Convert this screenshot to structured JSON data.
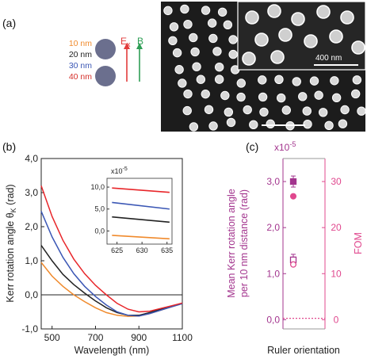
{
  "panels": {
    "a": "(a)",
    "b": "(b)",
    "c": "(c)"
  },
  "panel_a": {
    "legend": [
      {
        "label": "10 nm",
        "color": "#f08a2c"
      },
      {
        "label": "20 nm",
        "color": "#222222"
      },
      {
        "label": "30 nm",
        "color": "#3b57b5"
      },
      {
        "label": "40 nm",
        "color": "#d5302b"
      }
    ],
    "disk_color": "#6b6f8e",
    "e_label": "E",
    "e_sub": "x",
    "e_color": "#e23c3c",
    "b_label": "B",
    "b_color": "#2e9e55",
    "scale_label": "400 nm"
  },
  "chart_data": [
    {
      "type": "line",
      "panel": "b",
      "xlabel": "Wavelength (nm)",
      "ylabel": "Kerr rotation angle θ",
      "ylabel_sub": "K",
      "ylabel_unit": "(rad)",
      "ylim": [
        -1.0,
        4.0
      ],
      "xlim": [
        450,
        1100
      ],
      "y_exponent": "x10",
      "y_exponent_power": "-5",
      "x_ticks": [
        "500",
        "700",
        "900",
        "1100"
      ],
      "x_tick_values": [
        500,
        700,
        900,
        1100
      ],
      "y_ticks": [
        "-1,0",
        "0,0",
        "1,0",
        "2,0",
        "3,0",
        "4,0"
      ],
      "y_tick_values": [
        -1,
        0,
        1,
        2,
        3,
        4
      ],
      "series": [
        {
          "color": "#f08a2c",
          "x": [
            450,
            500,
            550,
            600,
            650,
            700,
            750,
            800,
            850,
            900,
            950,
            1000,
            1050,
            1100
          ],
          "y": [
            0.95,
            0.55,
            0.25,
            0.0,
            -0.2,
            -0.38,
            -0.52,
            -0.6,
            -0.63,
            -0.62,
            -0.55,
            -0.45,
            -0.35,
            -0.25
          ]
        },
        {
          "color": "#222222",
          "x": [
            450,
            500,
            550,
            600,
            650,
            700,
            750,
            800,
            850,
            900,
            950,
            1000,
            1050,
            1100
          ],
          "y": [
            1.45,
            1.0,
            0.6,
            0.3,
            0.05,
            -0.18,
            -0.38,
            -0.52,
            -0.6,
            -0.6,
            -0.52,
            -0.42,
            -0.33,
            -0.25
          ]
        },
        {
          "color": "#3b57b5",
          "x": [
            450,
            500,
            550,
            600,
            650,
            700,
            750,
            800,
            850,
            900,
            950,
            1000,
            1050,
            1100
          ],
          "y": [
            2.45,
            1.7,
            1.1,
            0.62,
            0.25,
            -0.05,
            -0.3,
            -0.5,
            -0.6,
            -0.62,
            -0.55,
            -0.45,
            -0.35,
            -0.26
          ]
        },
        {
          "color": "#e8262a",
          "x": [
            450,
            500,
            550,
            600,
            650,
            700,
            750,
            800,
            850,
            900,
            950,
            1000,
            1050,
            1100
          ],
          "y": [
            3.2,
            2.3,
            1.6,
            1.05,
            0.62,
            0.28,
            0.0,
            -0.25,
            -0.42,
            -0.5,
            -0.48,
            -0.4,
            -0.32,
            -0.24
          ]
        }
      ],
      "inset": {
        "y_exponent": "x10",
        "y_exponent_power": "-5",
        "xlim": [
          623,
          636
        ],
        "ylim": [
          -3,
          12
        ],
        "x_ticks": [
          "625",
          "630",
          "635"
        ],
        "x_tick_values": [
          625,
          630,
          635
        ],
        "y_ticks": [
          "0,0",
          "5,0",
          "10,0"
        ],
        "y_tick_values": [
          0,
          5,
          10
        ],
        "series": [
          {
            "color": "#e8262a",
            "x": [
              624,
              635.5
            ],
            "y": [
              9.8,
              8.8
            ]
          },
          {
            "color": "#3b57b5",
            "x": [
              624,
              635.5
            ],
            "y": [
              6.5,
              5.0
            ]
          },
          {
            "color": "#222222",
            "x": [
              624,
              635.5
            ],
            "y": [
              3.2,
              2.0
            ]
          },
          {
            "color": "#f08a2c",
            "x": [
              624,
              635.5
            ],
            "y": [
              -1.0,
              -1.8
            ]
          }
        ]
      }
    },
    {
      "type": "scatter",
      "panel": "c",
      "y_exponent": "x10",
      "y_exponent_power": "-5",
      "ylabel": "Mean Kerr rotation angle",
      "ylabel2": "per 10 nm distance (rad)",
      "y2label": "FOM",
      "xlabel": "Ruler orientation",
      "ylim": [
        -0.2,
        3.5
      ],
      "y2lim": [
        -2,
        35
      ],
      "y_ticks": [
        "0,0",
        "1,0",
        "2,0",
        "3,0"
      ],
      "y_tick_values": [
        0,
        1,
        2,
        3
      ],
      "y2_ticks": [
        "0",
        "10",
        "20",
        "30"
      ],
      "y2_tick_values": [
        0,
        10,
        20,
        30
      ],
      "reference_line_y": 0.03,
      "mean_kerr": [
        {
          "value": 3.0,
          "error": 0.12,
          "marker": "filled-square",
          "color": "#a3358e"
        },
        {
          "value": 1.3,
          "error": 0.12,
          "marker": "open-square",
          "color": "#a3358e"
        }
      ],
      "fom": [
        {
          "value": 26.8,
          "marker": "filled-circle",
          "color": "#e0488e"
        },
        {
          "value": 12.0,
          "marker": "open-circle",
          "color": "#e0488e"
        }
      ]
    }
  ]
}
